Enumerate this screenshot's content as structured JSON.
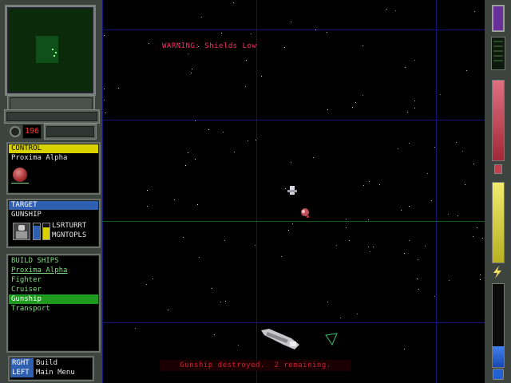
{
  "hud": {
    "credits": "196",
    "warning": "WARNING: Shields Low",
    "message": "Gunship destroyed.  2 remaining."
  },
  "control": {
    "header": "CONTROL",
    "planet_name": "Proxima Alpha"
  },
  "target": {
    "header": "TARGET",
    "type": "GUNSHIP",
    "weapon_1": "LSRTURRT",
    "weapon_2": "MGNTOPLS"
  },
  "build": {
    "header": "BUILD SHIPS",
    "planet": "Proxima Alpha",
    "items": [
      {
        "label": "Fighter"
      },
      {
        "label": "Cruiser"
      },
      {
        "label": "Gunship"
      },
      {
        "label": "Transport"
      }
    ],
    "selected": "Gunship"
  },
  "commands": {
    "right_key": "RGHT",
    "right_action": "Build",
    "left_key": "LEFT",
    "left_action": "Main Menu"
  },
  "colors": {
    "warning": "#ff2a6a",
    "message": "#d0202a",
    "control_header": "#d8d200",
    "target_header": "#2f5fb0",
    "selection": "#1e9a1e",
    "grid": "#141478",
    "shield_bar": "#c04050",
    "energy_bar": "#d8d24a",
    "fuel_bar": "#2060d0"
  },
  "icons": {
    "planet": "planet-icon",
    "pilot": "pilot-portrait-icon",
    "lightning": "lightning-icon"
  }
}
